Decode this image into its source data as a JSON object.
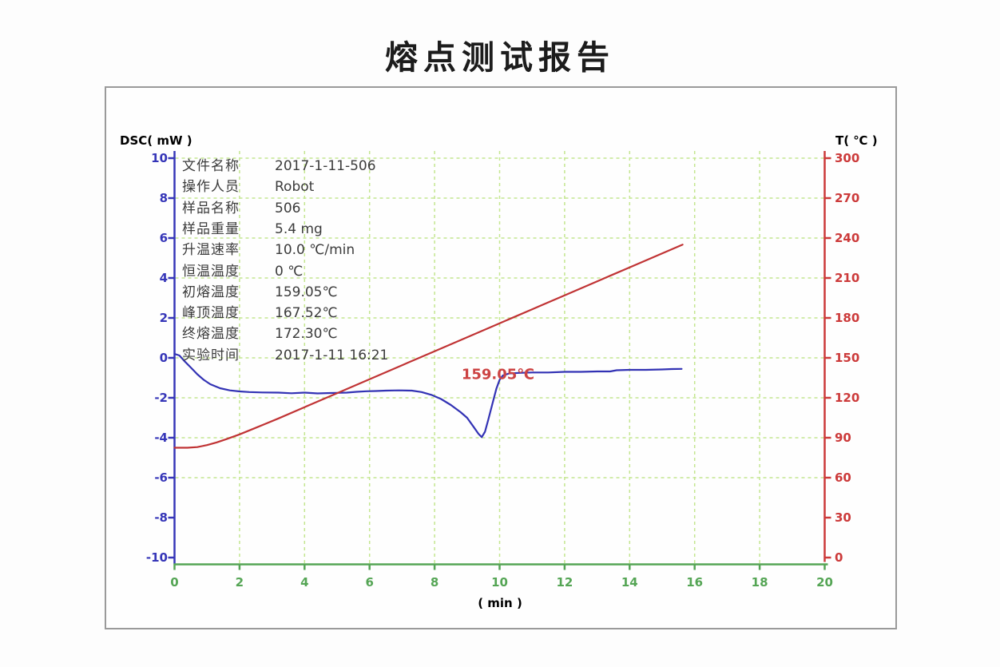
{
  "title": "熔点测试报告",
  "sample_info": {
    "rows": [
      {
        "label": "文件名称",
        "value": "2017-1-11-506"
      },
      {
        "label": "操作人员",
        "value": "Robot"
      },
      {
        "label": "样品名称",
        "value": "506"
      },
      {
        "label": "样品重量",
        "value": "5.4 mg"
      },
      {
        "label": "升温速率",
        "value": "10.0 ℃/min"
      },
      {
        "label": "恒温温度",
        "value": "0 ℃"
      },
      {
        "label": "初熔温度",
        "value": "159.05℃"
      },
      {
        "label": "峰顶温度",
        "value": "167.52℃"
      },
      {
        "label": "终熔温度",
        "value": "172.30℃"
      },
      {
        "label": "实验时间",
        "value": "2017-1-11 16:21"
      }
    ]
  },
  "chart_data": {
    "type": "line",
    "title": "熔点测试报告",
    "x_axis": {
      "label": "( min )",
      "min": 0,
      "max": 20,
      "tick_step": 2,
      "color": "#55a555"
    },
    "left_axis": {
      "title": "DSC( mW )",
      "min": -10,
      "max": 10,
      "tick_step": 2,
      "color": "#3636b8"
    },
    "right_axis": {
      "title": "T( ℃ )",
      "min": 0,
      "max": 300,
      "tick_step": 30,
      "color": "#cc3a3a"
    },
    "grid": {
      "show": true,
      "color": "#c4e690",
      "dash": "4 4"
    },
    "legend": {
      "show": false
    },
    "annotation": {
      "text": "159.05℃",
      "x": 9.95,
      "y_dsc": -0.85,
      "color": "#cc4343"
    },
    "series": [
      {
        "name": "DSC",
        "axis": "left",
        "color": "#3232b4",
        "points": [
          [
            0,
            0.2
          ],
          [
            0.15,
            0.12
          ],
          [
            0.3,
            -0.15
          ],
          [
            0.5,
            -0.48
          ],
          [
            0.7,
            -0.82
          ],
          [
            0.9,
            -1.1
          ],
          [
            1.1,
            -1.32
          ],
          [
            1.4,
            -1.52
          ],
          [
            1.7,
            -1.63
          ],
          [
            2.0,
            -1.68
          ],
          [
            2.3,
            -1.71
          ],
          [
            2.7,
            -1.73
          ],
          [
            3.2,
            -1.74
          ],
          [
            3.6,
            -1.77
          ],
          [
            4.0,
            -1.74
          ],
          [
            4.4,
            -1.78
          ],
          [
            4.8,
            -1.76
          ],
          [
            5.0,
            -1.75
          ],
          [
            5.3,
            -1.74
          ],
          [
            5.6,
            -1.7
          ],
          [
            5.9,
            -1.67
          ],
          [
            6.2,
            -1.66
          ],
          [
            6.5,
            -1.64
          ],
          [
            6.9,
            -1.63
          ],
          [
            7.3,
            -1.64
          ],
          [
            7.6,
            -1.71
          ],
          [
            7.9,
            -1.85
          ],
          [
            8.2,
            -2.06
          ],
          [
            8.5,
            -2.36
          ],
          [
            8.8,
            -2.72
          ],
          [
            9.0,
            -3.0
          ],
          [
            9.2,
            -3.45
          ],
          [
            9.35,
            -3.8
          ],
          [
            9.45,
            -3.97
          ],
          [
            9.55,
            -3.7
          ],
          [
            9.65,
            -3.1
          ],
          [
            9.78,
            -2.3
          ],
          [
            9.9,
            -1.55
          ],
          [
            10.0,
            -1.1
          ],
          [
            10.1,
            -0.88
          ],
          [
            10.3,
            -0.78
          ],
          [
            10.6,
            -0.75
          ],
          [
            11.0,
            -0.73
          ],
          [
            11.5,
            -0.73
          ],
          [
            12.0,
            -0.7
          ],
          [
            12.5,
            -0.7
          ],
          [
            13.0,
            -0.68
          ],
          [
            13.4,
            -0.68
          ],
          [
            13.6,
            -0.62
          ],
          [
            14.0,
            -0.6
          ],
          [
            14.5,
            -0.6
          ],
          [
            15.0,
            -0.58
          ],
          [
            15.3,
            -0.56
          ],
          [
            15.6,
            -0.55
          ]
        ]
      },
      {
        "name": "T",
        "axis": "right",
        "color": "#c03334",
        "points": [
          [
            0,
            82.5
          ],
          [
            0.4,
            82.5
          ],
          [
            0.7,
            83
          ],
          [
            1.0,
            84.5
          ],
          [
            1.3,
            86.5
          ],
          [
            1.6,
            89
          ],
          [
            2.0,
            92.5
          ],
          [
            2.4,
            96.5
          ],
          [
            2.8,
            100.5
          ],
          [
            3.2,
            104.5
          ],
          [
            4,
            113
          ],
          [
            5,
            123.5
          ],
          [
            6,
            134
          ],
          [
            7,
            144.5
          ],
          [
            8,
            155
          ],
          [
            9,
            165.5
          ],
          [
            10,
            176
          ],
          [
            11,
            186.5
          ],
          [
            12,
            197
          ],
          [
            13,
            207.5
          ],
          [
            14,
            218
          ],
          [
            15,
            228.5
          ],
          [
            15.63,
            235
          ]
        ]
      }
    ]
  }
}
